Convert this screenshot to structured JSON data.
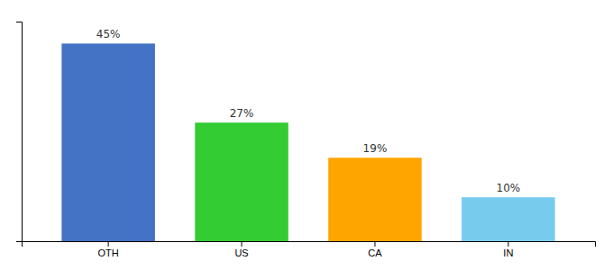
{
  "chart_data": {
    "type": "bar",
    "categories": [
      "OTH",
      "US",
      "CA",
      "IN"
    ],
    "values": [
      45,
      27,
      19,
      10
    ],
    "value_labels": [
      "45%",
      "27%",
      "19%",
      "10%"
    ],
    "colors": [
      "#4472C4",
      "#33CC33",
      "#FFA500",
      "#77CCEE"
    ],
    "ylim": [
      0,
      50
    ],
    "data_labels": true,
    "tick_labels": "x"
  }
}
